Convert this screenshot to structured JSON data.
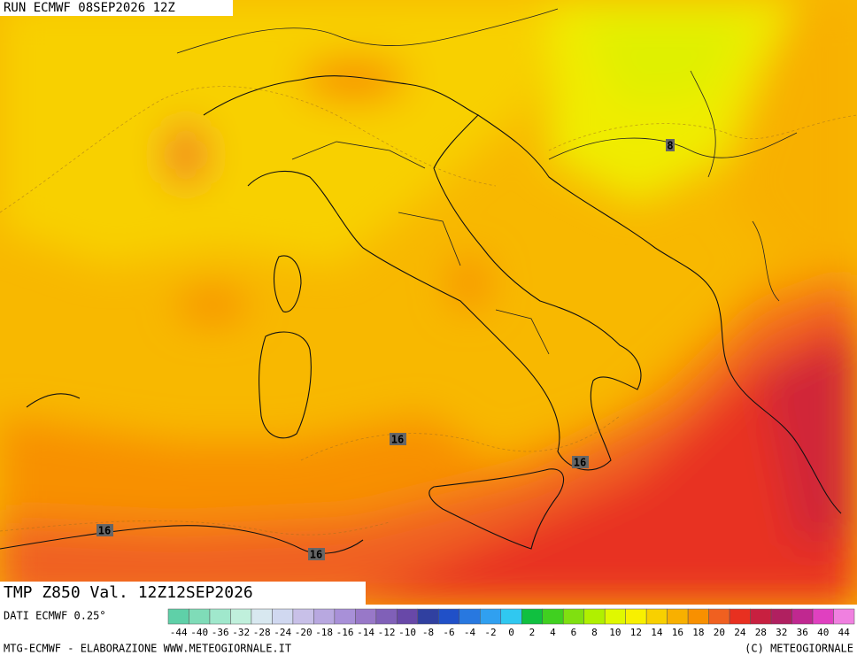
{
  "header": {
    "title": "RUN ECMWF 08SEP2026 12Z"
  },
  "map": {
    "field_label": "TMP Z850 Val. 12Z12SEP2026",
    "contour_labels": [
      {
        "value": 8
      },
      {
        "value": 16
      },
      {
        "value": 16
      },
      {
        "value": 16
      },
      {
        "value": 16
      }
    ]
  },
  "colorbar": {
    "entries": [
      {
        "value": -44,
        "color": "#5fd0a8"
      },
      {
        "value": -40,
        "color": "#7fdcb8"
      },
      {
        "value": -36,
        "color": "#a0e8cc"
      },
      {
        "value": -32,
        "color": "#c0f0dc"
      },
      {
        "value": -28,
        "color": "#d8e8f0"
      },
      {
        "value": -24,
        "color": "#d0d8f0"
      },
      {
        "value": -20,
        "color": "#c8c0e8"
      },
      {
        "value": -18,
        "color": "#b8a8e0"
      },
      {
        "value": -16,
        "color": "#a890d8"
      },
      {
        "value": -14,
        "color": "#9878c8"
      },
      {
        "value": -12,
        "color": "#8060b8"
      },
      {
        "value": -10,
        "color": "#6848a8"
      },
      {
        "value": -8,
        "color": "#3040a0"
      },
      {
        "value": -6,
        "color": "#2050c8"
      },
      {
        "value": -4,
        "color": "#2878e0"
      },
      {
        "value": -2,
        "color": "#30a0f0"
      },
      {
        "value": 0,
        "color": "#30c8f0"
      },
      {
        "value": 2,
        "color": "#10c040"
      },
      {
        "value": 4,
        "color": "#40d020"
      },
      {
        "value": 6,
        "color": "#80e010"
      },
      {
        "value": 8,
        "color": "#b0f000"
      },
      {
        "value": 10,
        "color": "#e0f800"
      },
      {
        "value": 12,
        "color": "#f8f000"
      },
      {
        "value": 14,
        "color": "#f8d000"
      },
      {
        "value": 16,
        "color": "#f8b000"
      },
      {
        "value": 18,
        "color": "#f89000"
      },
      {
        "value": 20,
        "color": "#f06020"
      },
      {
        "value": 24,
        "color": "#e83020"
      },
      {
        "value": 28,
        "color": "#c82040"
      },
      {
        "value": 32,
        "color": "#b02060"
      },
      {
        "value": 36,
        "color": "#c02890"
      },
      {
        "value": 40,
        "color": "#e040c0"
      },
      {
        "value": 44,
        "color": "#f080e0"
      }
    ]
  },
  "footer": {
    "source": "DATI ECMWF 0.25°",
    "credit": "MTG-ECMWF - ELABORAZIONE WWW.METEOGIORNALE.IT",
    "copyright": "(C) METEOGIORNALE"
  }
}
